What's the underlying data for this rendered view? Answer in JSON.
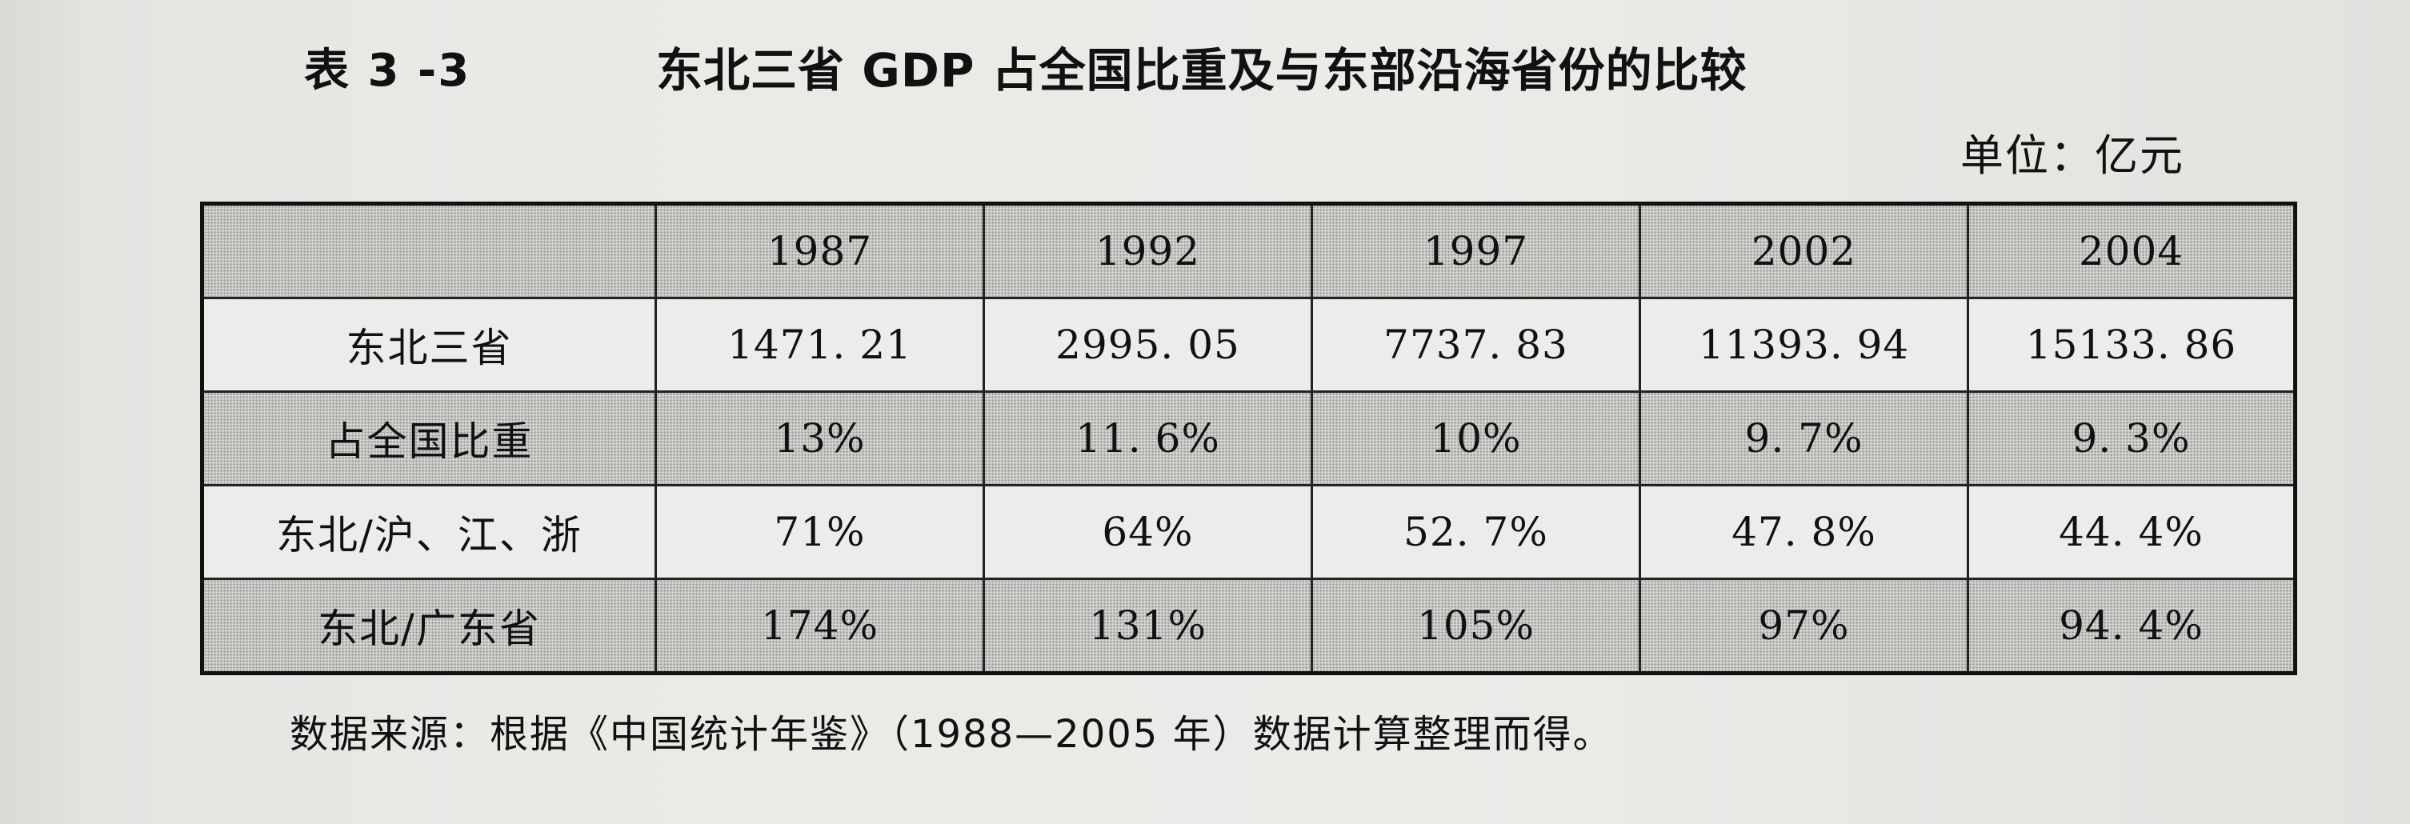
{
  "caption": {
    "table_number": "表 3 -3",
    "title": "东北三省 GDP 占全国比重及与东部沿海省份的比较"
  },
  "unit": "单位：亿元",
  "table": {
    "columns": [
      "",
      "1987",
      "1992",
      "1997",
      "2002",
      "2004"
    ],
    "rows": [
      {
        "label": "东北三省",
        "values": [
          "1471. 21",
          "2995. 05",
          "7737. 83",
          "11393. 94",
          "15133. 86"
        ]
      },
      {
        "label": "占全国比重",
        "values": [
          "13%",
          "11. 6%",
          "10%",
          "9. 7%",
          "9. 3%"
        ]
      },
      {
        "label": "东北/沪、江、浙",
        "values": [
          "71%",
          "64%",
          "52. 7%",
          "47. 8%",
          "44. 4%"
        ]
      },
      {
        "label": "东北/广东省",
        "values": [
          "174%",
          "131%",
          "105%",
          "97%",
          "94. 4%"
        ]
      }
    ]
  },
  "source_note": "数据来源：根据《中国统计年鉴》（1988—2005 年）数据计算整理而得。"
}
